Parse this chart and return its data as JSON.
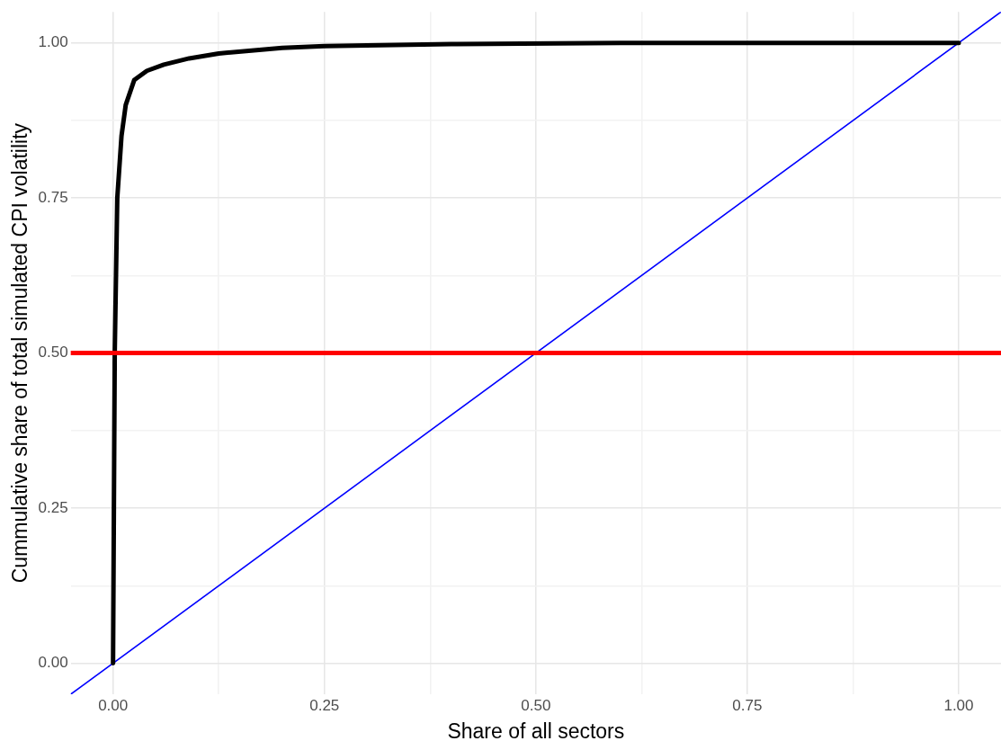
{
  "chart_data": {
    "type": "line",
    "xlabel": "Share of all sectors",
    "ylabel": "Cummulative share of total simulated CPI volatility",
    "xlim": [
      -0.05,
      1.05
    ],
    "ylim": [
      -0.05,
      1.05
    ],
    "xticks": [
      {
        "value": 0,
        "label": "0.00"
      },
      {
        "value": 0.125,
        "label": null
      },
      {
        "value": 0.25,
        "label": "0.25"
      },
      {
        "value": 0.375,
        "label": null
      },
      {
        "value": 0.5,
        "label": "0.50"
      },
      {
        "value": 0.625,
        "label": null
      },
      {
        "value": 0.75,
        "label": "0.75"
      },
      {
        "value": 0.875,
        "label": null
      },
      {
        "value": 1,
        "label": "1.00"
      }
    ],
    "yticks": [
      {
        "value": 0,
        "label": "0.00"
      },
      {
        "value": 0.125,
        "label": null
      },
      {
        "value": 0.25,
        "label": "0.25"
      },
      {
        "value": 0.375,
        "label": null
      },
      {
        "value": 0.5,
        "label": "0.50"
      },
      {
        "value": 0.625,
        "label": null
      },
      {
        "value": 0.75,
        "label": "0.75"
      },
      {
        "value": 0.875,
        "label": null
      },
      {
        "value": 1,
        "label": "1.00"
      }
    ],
    "grid": true,
    "legend": false,
    "marker": "none",
    "line_style": "solid",
    "series": [
      {
        "color": "#000000",
        "x": [
          0,
          0.001,
          0.002,
          0.005,
          0.01,
          0.015,
          0.025,
          0.04,
          0.06,
          0.09,
          0.125,
          0.2,
          0.25,
          0.4,
          0.6,
          1
        ],
        "values": [
          0,
          0.25,
          0.5,
          0.75,
          0.85,
          0.9,
          0.94,
          0.955,
          0.965,
          0.975,
          0.983,
          0.992,
          0.995,
          0.998,
          1,
          1
        ]
      },
      {
        "type": "line",
        "color": "#0000ff",
        "x": [
          -0.05,
          1.05
        ],
        "values": [
          -0.05,
          1.05
        ]
      }
    ],
    "ref_lines": [
      {
        "axis": "y",
        "value": 0.5,
        "color": "#ff0000"
      }
    ]
  }
}
